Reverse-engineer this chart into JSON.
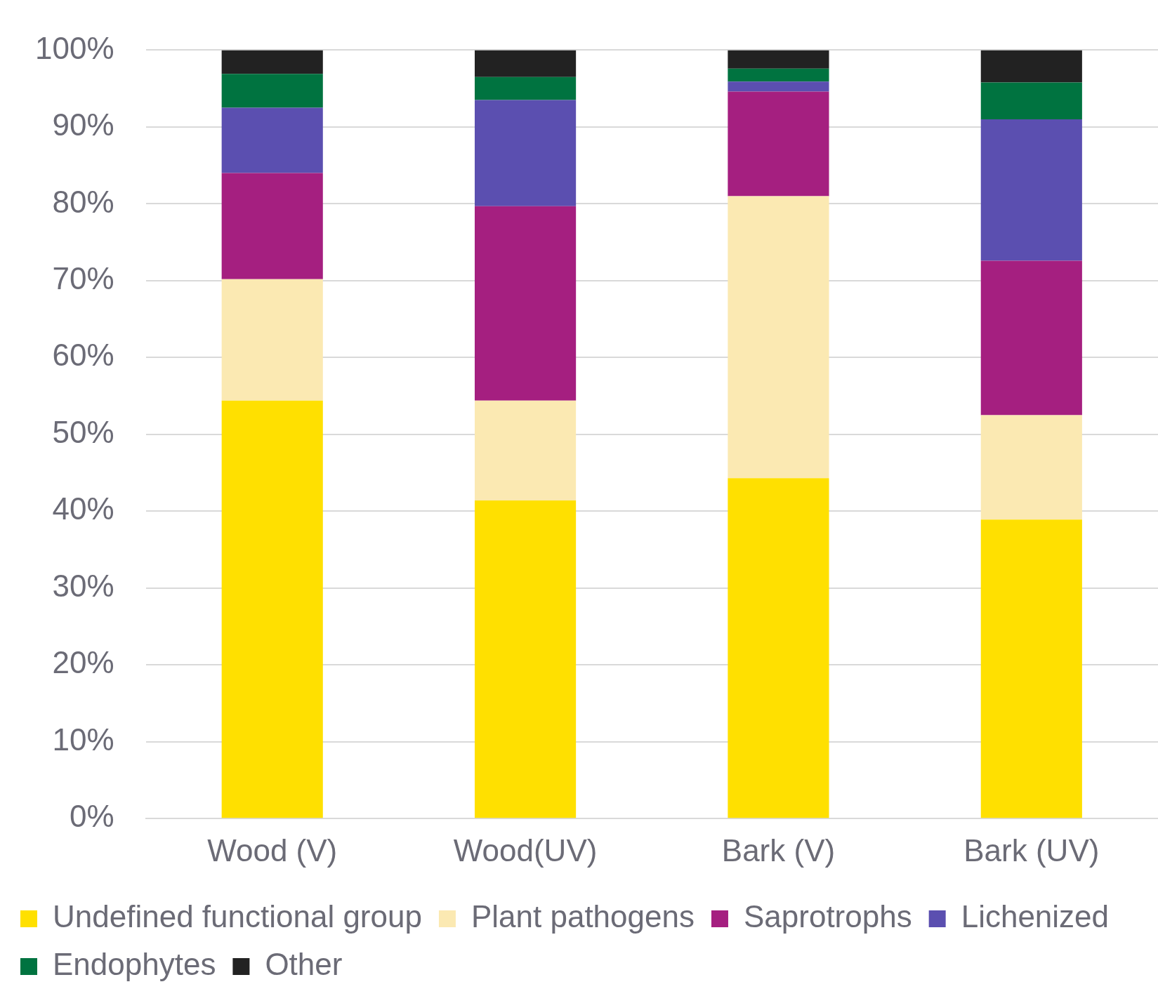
{
  "chart_data": {
    "type": "bar",
    "stacked": true,
    "categories": [
      "Wood (V)",
      "Wood(UV)",
      "Bark (V)",
      "Bark (UV)"
    ],
    "series": [
      {
        "name": "Undefined functional group",
        "color": "#ffe000",
        "values": [
          54.4,
          41.4,
          44.3,
          38.9
        ]
      },
      {
        "name": "Plant pathogens",
        "color": "#fbe9b2",
        "values": [
          15.8,
          13.0,
          36.7,
          13.6
        ]
      },
      {
        "name": "Saprotrophs",
        "color": "#a51f80",
        "values": [
          13.8,
          25.3,
          13.6,
          20.1
        ]
      },
      {
        "name": "Lichenized",
        "color": "#5b4fb0",
        "values": [
          8.5,
          13.8,
          1.3,
          18.4
        ]
      },
      {
        "name": "Endophytes",
        "color": "#007340",
        "values": [
          4.4,
          3.0,
          1.7,
          4.8
        ]
      },
      {
        "name": "Other",
        "color": "#222222",
        "values": [
          3.1,
          3.5,
          2.4,
          4.2
        ]
      }
    ],
    "ylim": [
      0,
      100
    ],
    "yticks": [
      {
        "value": 0,
        "label": "0%"
      },
      {
        "value": 10,
        "label": "10%"
      },
      {
        "value": 20,
        "label": "20%"
      },
      {
        "value": 30,
        "label": "30%"
      },
      {
        "value": 40,
        "label": "40%"
      },
      {
        "value": 50,
        "label": "50%"
      },
      {
        "value": 60,
        "label": "60%"
      },
      {
        "value": 70,
        "label": "70%"
      },
      {
        "value": 80,
        "label": "80%"
      },
      {
        "value": 90,
        "label": "90%"
      },
      {
        "value": 100,
        "label": "100%"
      }
    ],
    "grid": "y",
    "legend": "bottom"
  }
}
